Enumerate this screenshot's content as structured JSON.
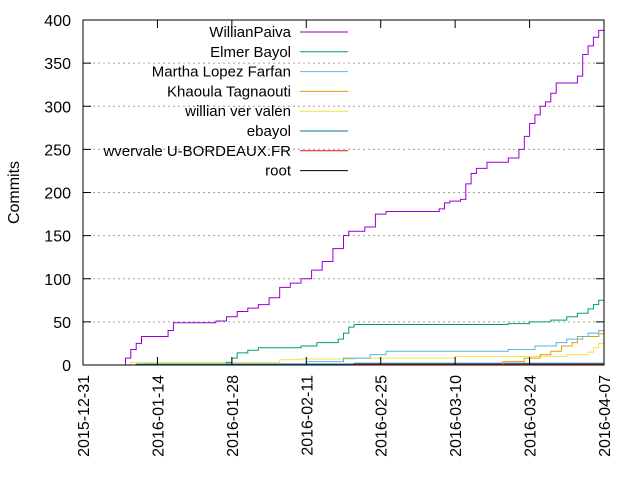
{
  "chart_data": {
    "type": "line",
    "xlabel": "",
    "ylabel": "Commits",
    "xlim": [
      "2015-12-31",
      "2016-04-07"
    ],
    "ylim": [
      0,
      400
    ],
    "x_ticks": [
      "2015-12-31",
      "2016-01-14",
      "2016-01-28",
      "2016-02-11",
      "2016-02-25",
      "2016-03-10",
      "2016-03-24",
      "2016-04-07"
    ],
    "y_ticks": [
      0,
      50,
      100,
      150,
      200,
      250,
      300,
      350,
      400
    ],
    "grid": true,
    "legend_position": "top-left",
    "series": [
      {
        "name": "WillianPaiva",
        "color": "#9400d3",
        "points": [
          [
            "2016-01-07",
            0
          ],
          [
            "2016-01-08",
            8
          ],
          [
            "2016-01-09",
            18
          ],
          [
            "2016-01-10",
            25
          ],
          [
            "2016-01-11",
            33
          ],
          [
            "2016-01-16",
            40
          ],
          [
            "2016-01-17",
            49
          ],
          [
            "2016-01-25",
            51
          ],
          [
            "2016-01-27",
            56
          ],
          [
            "2016-01-29",
            62
          ],
          [
            "2016-01-31",
            66
          ],
          [
            "2016-02-02",
            70
          ],
          [
            "2016-02-04",
            78
          ],
          [
            "2016-02-06",
            90
          ],
          [
            "2016-02-08",
            95
          ],
          [
            "2016-02-10",
            100
          ],
          [
            "2016-02-12",
            110
          ],
          [
            "2016-02-14",
            120
          ],
          [
            "2016-02-16",
            135
          ],
          [
            "2016-02-18",
            150
          ],
          [
            "2016-02-19",
            155
          ],
          [
            "2016-02-22",
            160
          ],
          [
            "2016-02-24",
            175
          ],
          [
            "2016-02-26",
            178
          ],
          [
            "2016-03-07",
            181
          ],
          [
            "2016-03-08",
            188
          ],
          [
            "2016-03-09",
            190
          ],
          [
            "2016-03-11",
            192
          ],
          [
            "2016-03-12",
            210
          ],
          [
            "2016-03-13",
            222
          ],
          [
            "2016-03-14",
            228
          ],
          [
            "2016-03-16",
            235
          ],
          [
            "2016-03-20",
            240
          ],
          [
            "2016-03-22",
            250
          ],
          [
            "2016-03-23",
            265
          ],
          [
            "2016-03-24",
            280
          ],
          [
            "2016-03-25",
            290
          ],
          [
            "2016-03-26",
            300
          ],
          [
            "2016-03-27",
            305
          ],
          [
            "2016-03-28",
            315
          ],
          [
            "2016-03-29",
            327
          ],
          [
            "2016-04-02",
            335
          ],
          [
            "2016-04-03",
            360
          ],
          [
            "2016-04-04",
            370
          ],
          [
            "2016-04-05",
            380
          ],
          [
            "2016-04-06",
            388
          ],
          [
            "2016-04-07",
            395
          ]
        ]
      },
      {
        "name": "Elmer Bayol",
        "color": "#009e73",
        "points": [
          [
            "2016-01-10",
            0
          ],
          [
            "2016-01-14",
            1
          ],
          [
            "2016-01-27",
            3
          ],
          [
            "2016-01-28",
            8
          ],
          [
            "2016-01-29",
            14
          ],
          [
            "2016-01-31",
            17
          ],
          [
            "2016-02-02",
            20
          ],
          [
            "2016-02-10",
            22
          ],
          [
            "2016-02-13",
            26
          ],
          [
            "2016-02-17",
            30
          ],
          [
            "2016-02-18",
            37
          ],
          [
            "2016-02-19",
            44
          ],
          [
            "2016-02-20",
            47
          ],
          [
            "2016-03-20",
            48
          ],
          [
            "2016-03-24",
            50
          ],
          [
            "2016-03-28",
            52
          ],
          [
            "2016-03-31",
            56
          ],
          [
            "2016-04-02",
            60
          ],
          [
            "2016-04-04",
            65
          ],
          [
            "2016-04-05",
            70
          ],
          [
            "2016-04-06",
            75
          ],
          [
            "2016-04-07",
            78
          ]
        ]
      },
      {
        "name": "Martha Lopez Farfan",
        "color": "#56b4e9",
        "points": [
          [
            "2016-02-09",
            0
          ],
          [
            "2016-02-11",
            4
          ],
          [
            "2016-02-18",
            8
          ],
          [
            "2016-02-23",
            12
          ],
          [
            "2016-02-26",
            16
          ],
          [
            "2016-03-20",
            18
          ],
          [
            "2016-03-25",
            22
          ],
          [
            "2016-03-29",
            26
          ],
          [
            "2016-03-31",
            30
          ],
          [
            "2016-04-02",
            33
          ],
          [
            "2016-04-04",
            37
          ],
          [
            "2016-04-06",
            40
          ],
          [
            "2016-04-07",
            44
          ]
        ]
      },
      {
        "name": "Khaoula Tagnaouti",
        "color": "#e69f00",
        "points": [
          [
            "2016-03-16",
            0
          ],
          [
            "2016-03-19",
            4
          ],
          [
            "2016-03-23",
            8
          ],
          [
            "2016-03-26",
            12
          ],
          [
            "2016-03-28",
            16
          ],
          [
            "2016-03-30",
            22
          ],
          [
            "2016-04-01",
            26
          ],
          [
            "2016-04-02",
            30
          ],
          [
            "2016-04-03",
            33
          ],
          [
            "2016-04-06",
            36
          ],
          [
            "2016-04-07",
            38
          ]
        ]
      },
      {
        "name": "willian ver valen",
        "color": "#f0e442",
        "points": [
          [
            "2016-01-08",
            0
          ],
          [
            "2016-01-09",
            3
          ],
          [
            "2016-02-06",
            6
          ],
          [
            "2016-02-10",
            7
          ],
          [
            "2016-02-20",
            8
          ],
          [
            "2016-03-10",
            10
          ],
          [
            "2016-03-31",
            12
          ],
          [
            "2016-04-04",
            15
          ],
          [
            "2016-04-05",
            20
          ],
          [
            "2016-04-06",
            25
          ],
          [
            "2016-04-07",
            30
          ]
        ]
      },
      {
        "name": "ebayol",
        "color": "#0072b2",
        "points": [
          [
            "2016-01-08",
            0
          ],
          [
            "2016-01-10",
            1
          ],
          [
            "2016-02-20",
            2
          ],
          [
            "2016-04-07",
            2
          ]
        ]
      },
      {
        "name": "wvervale U-BORDEAUX.FR",
        "color": "#e51e10",
        "points": [
          [
            "2016-01-08",
            0
          ],
          [
            "2016-01-12",
            1
          ],
          [
            "2016-04-07",
            1
          ]
        ]
      },
      {
        "name": "root",
        "color": "#000000",
        "points": [
          [
            "2016-01-08",
            0
          ],
          [
            "2016-04-07",
            0
          ]
        ]
      }
    ]
  }
}
